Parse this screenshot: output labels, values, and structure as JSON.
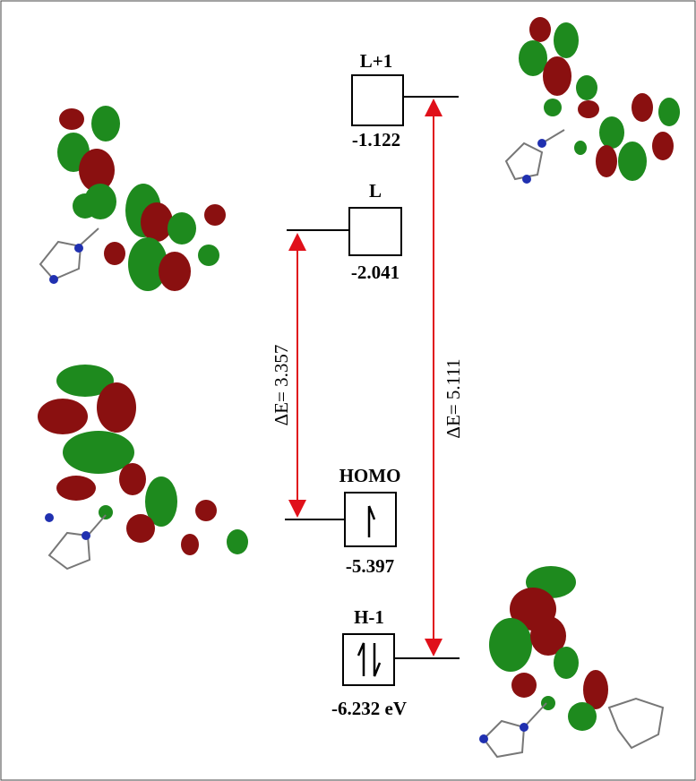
{
  "levels": [
    {
      "label": "L+1",
      "energy": "-1.122"
    },
    {
      "label": "L",
      "energy": "-2.041"
    },
    {
      "label": "HOMO",
      "energy": "-5.397"
    },
    {
      "label": "H-1",
      "energy": "-6.232 eV"
    }
  ],
  "gaps": [
    {
      "text": "ΔE=  3.357"
    },
    {
      "text": "ΔE=  5.111"
    }
  ]
}
